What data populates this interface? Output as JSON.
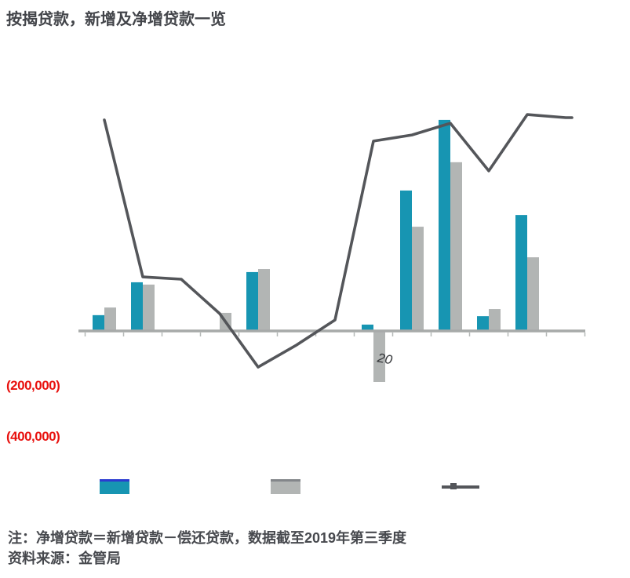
{
  "title": "按揭贷款，新增及净增贷款一览",
  "chart_data": {
    "type": "bar",
    "note": "combined bar + line chart; category axis labels not visible in image",
    "categories": [
      "",
      "",
      "",
      "",
      "",
      "",
      "",
      "",
      "",
      "",
      "",
      "",
      ""
    ],
    "series": [
      {
        "name": "teal-bars",
        "kind": "bar",
        "color": "#1795b2",
        "values": [
          62000,
          191000,
          0,
          0,
          231000,
          0,
          0,
          25000,
          551000,
          828000,
          58000,
          455000,
          0
        ]
      },
      {
        "name": "gray-bars",
        "kind": "bar",
        "color": "#b2b5b4",
        "values": [
          92000,
          182000,
          0,
          71000,
          243000,
          0,
          0,
          -200000,
          409000,
          662000,
          86000,
          289000,
          0
        ]
      },
      {
        "name": "gray-line",
        "kind": "line",
        "color": "#54565a",
        "values": [
          828000,
          212000,
          203000,
          68000,
          -142000,
          -55000,
          43000,
          745000,
          769000,
          815000,
          628000,
          849000,
          837000
        ]
      }
    ],
    "ylim": [
      -400000,
      900000
    ],
    "grid": "off",
    "legend_position": "bottom",
    "y_axis_visible_labels": [
      {
        "text": "(200,000)",
        "value": -200000,
        "color": "#e8120f"
      },
      {
        "text": "(400,000)",
        "value": -400000,
        "color": "#e8120f"
      }
    ],
    "x_axis_partial_label": "20",
    "axis_color": "#a7aaa9",
    "legend": [
      {
        "swatch": "teal-bar",
        "label": ""
      },
      {
        "swatch": "gray-bar",
        "label": ""
      },
      {
        "swatch": "gray-line",
        "label": ""
      }
    ]
  },
  "footer": {
    "note_line1": "注：净增贷款＝新增贷款－偿还贷款，数据截至2019年第三季度",
    "note_line2": "资料来源：金管局"
  },
  "colors": {
    "teal_bar": "#1795b2",
    "gray_bar": "#b2b5b4",
    "line": "#54565a",
    "axis": "#a7aaa9",
    "negative_label_red": "#e8120f",
    "legend_blue_edge": "#2b3bd0",
    "text_dark": "#43454a"
  }
}
